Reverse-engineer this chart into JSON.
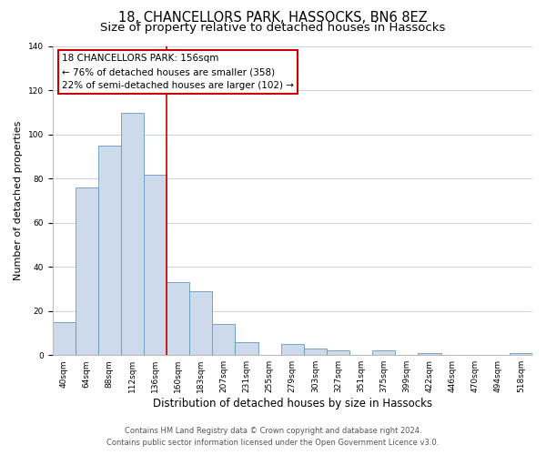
{
  "title": "18, CHANCELLORS PARK, HASSOCKS, BN6 8EZ",
  "subtitle": "Size of property relative to detached houses in Hassocks",
  "xlabel": "Distribution of detached houses by size in Hassocks",
  "ylabel": "Number of detached properties",
  "bar_labels": [
    "40sqm",
    "64sqm",
    "88sqm",
    "112sqm",
    "136sqm",
    "160sqm",
    "183sqm",
    "207sqm",
    "231sqm",
    "255sqm",
    "279sqm",
    "303sqm",
    "327sqm",
    "351sqm",
    "375sqm",
    "399sqm",
    "422sqm",
    "446sqm",
    "470sqm",
    "494sqm",
    "518sqm"
  ],
  "bar_values": [
    15,
    76,
    95,
    110,
    82,
    33,
    29,
    14,
    6,
    0,
    5,
    3,
    2,
    0,
    2,
    0,
    1,
    0,
    0,
    0,
    1
  ],
  "bar_color": "#ccdaeb",
  "bar_edge_color": "#6699bb",
  "vline_pos": 4.5,
  "vline_color": "#cc0000",
  "annotation_title": "18 CHANCELLORS PARK: 156sqm",
  "annotation_line1": "← 76% of detached houses are smaller (358)",
  "annotation_line2": "22% of semi-detached houses are larger (102) →",
  "annotation_box_color": "#ffffff",
  "annotation_box_edge": "#cc0000",
  "ylim": [
    0,
    140
  ],
  "yticks": [
    0,
    20,
    40,
    60,
    80,
    100,
    120,
    140
  ],
  "footnote1": "Contains HM Land Registry data © Crown copyright and database right 2024.",
  "footnote2": "Contains public sector information licensed under the Open Government Licence v3.0.",
  "bg_color": "#ffffff",
  "grid_color": "#c8d4e0",
  "title_fontsize": 10.5,
  "subtitle_fontsize": 9.5,
  "ylabel_fontsize": 8,
  "xlabel_fontsize": 8.5,
  "annotation_fontsize": 7.5,
  "tick_fontsize": 6.5,
  "footnote_fontsize": 6
}
